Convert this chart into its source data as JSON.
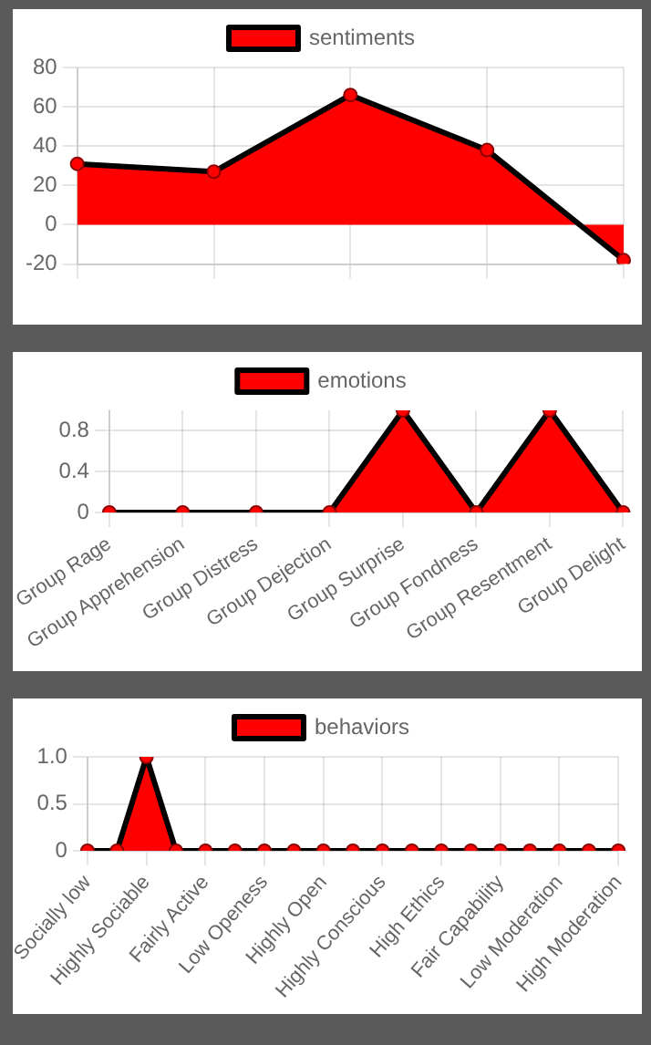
{
  "chart_data": [
    {
      "type": "area",
      "categories": [
        null,
        null,
        null,
        null,
        null
      ],
      "series": [
        {
          "name": "sentiments",
          "color": "#ff0000",
          "values": [
            31,
            27,
            66,
            38,
            -18
          ]
        }
      ],
      "ylim": [
        -20,
        80
      ],
      "yticks": [
        -20,
        0,
        20,
        40,
        60,
        80
      ],
      "grid": true,
      "legend": "top",
      "marker": "circle"
    },
    {
      "type": "area",
      "categories": [
        "Group Rage",
        "Group Apprehension",
        "Group Distress",
        "Group Dejection",
        "Group Surprise",
        "Group Fondness",
        "Group Resentment",
        "Group Delight"
      ],
      "series": [
        {
          "name": "emotions",
          "color": "#ff0000",
          "values": [
            0,
            0,
            0,
            0,
            1,
            0,
            1,
            0
          ]
        }
      ],
      "ylim": [
        0,
        1
      ],
      "yticks": [
        0,
        0.4,
        0.8
      ],
      "grid": true,
      "legend": "top",
      "marker": "circle"
    },
    {
      "type": "area",
      "categories": [
        "Socially low",
        null,
        "Highly Sociable",
        null,
        "Fairly Active",
        null,
        "Low Openess",
        null,
        "Highly Open",
        null,
        "Highly Conscious",
        null,
        "High Ethics",
        null,
        "Fair Capability",
        null,
        "Low Moderation",
        null,
        "High Moderation"
      ],
      "series": [
        {
          "name": "behaviors",
          "color": "#ff0000",
          "values": [
            0,
            0,
            1,
            0,
            0,
            0,
            0,
            0,
            0,
            0,
            0,
            0,
            0,
            0,
            0,
            0,
            0,
            0,
            0
          ]
        }
      ],
      "ylim": [
        0,
        1
      ],
      "yticks": [
        0,
        {
          "value": 0.5,
          "label": "0.5"
        },
        {
          "value": 1,
          "label": "1.0"
        }
      ],
      "grid": true,
      "legend": "top",
      "marker": "circle"
    }
  ]
}
